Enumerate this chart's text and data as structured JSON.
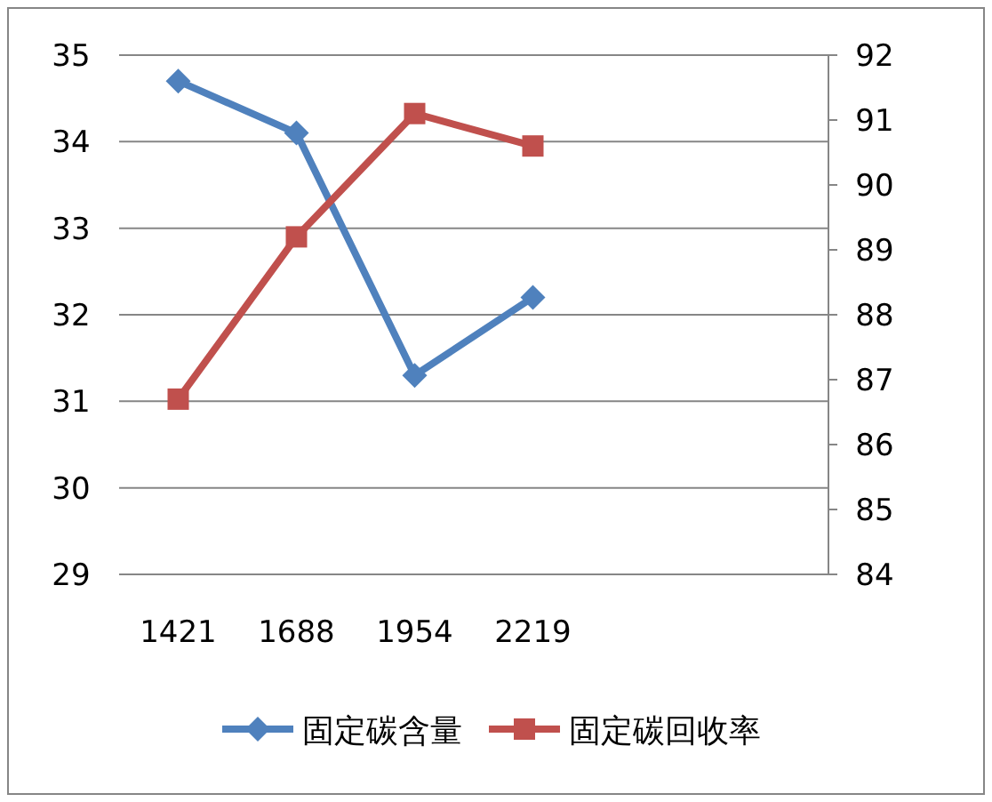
{
  "chart_data": {
    "type": "line",
    "categories": [
      "1421",
      "1688",
      "1954",
      "2219",
      null,
      null
    ],
    "series": [
      {
        "name": "固定碳含量",
        "color": "#4f81bd",
        "marker": "diamond",
        "values": [
          34.7,
          34.1,
          31.3,
          32.2,
          null,
          null
        ]
      },
      {
        "name": "固定碳回收率",
        "color": "#c0504d",
        "marker": "square",
        "axis": "y2",
        "values": [
          86.7,
          89.2,
          91.1,
          90.6,
          null,
          null
        ]
      }
    ],
    "ylim": [
      29,
      35
    ],
    "yticks": [
      29,
      30,
      31,
      32,
      33,
      34,
      35
    ],
    "y2lim": [
      84,
      92
    ],
    "y2ticks": [
      84,
      85,
      86,
      87,
      88,
      89,
      90,
      91,
      92
    ],
    "grid": "y",
    "legend": "bottom"
  }
}
